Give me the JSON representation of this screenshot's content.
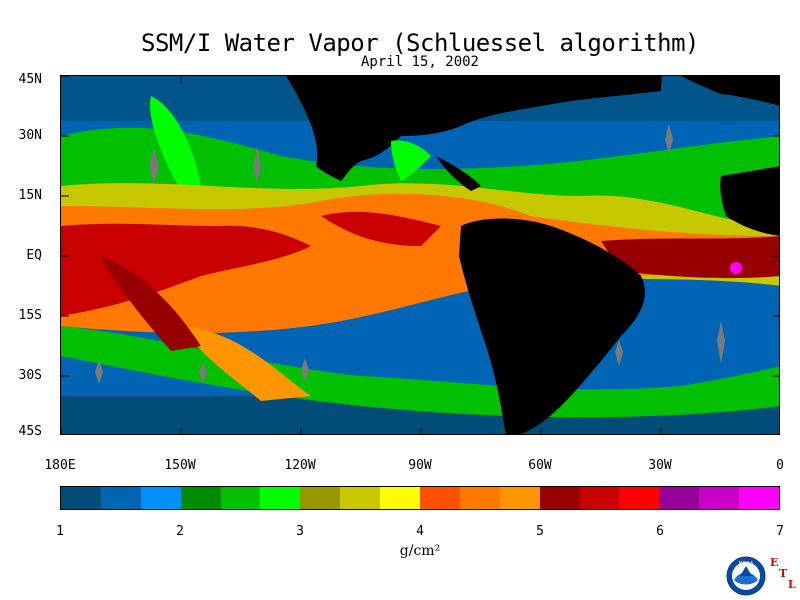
{
  "title": "SSM/I Water Vapor (Schluessel algorithm)",
  "subtitle": "April 15, 2002",
  "map": {
    "lat_labels": [
      "45N",
      "30N",
      "15N",
      "EQ",
      "15S",
      "30S",
      "45S"
    ],
    "lon_labels": [
      "180E",
      "150W",
      "120W",
      "90W",
      "60W",
      "30W",
      "0"
    ]
  },
  "colorbar": {
    "colors": [
      "#004e78",
      "#0064b4",
      "#0090ff",
      "#008c00",
      "#00c000",
      "#00ff00",
      "#969600",
      "#c8c800",
      "#ffff00",
      "#ff5000",
      "#ff7800",
      "#ff9600",
      "#960000",
      "#c80000",
      "#ff0000",
      "#960096",
      "#c800c8",
      "#ff00ff"
    ],
    "tick_labels": [
      "1",
      "2",
      "3",
      "4",
      "5",
      "6",
      "7"
    ],
    "unit": "g/cm²"
  },
  "logo": {
    "name": "noaa-logo",
    "text": "NOAA",
    "etl": [
      "E",
      "T",
      "L"
    ]
  },
  "palette": {
    "land": "#000000",
    "gap": "#7a7a7a"
  }
}
